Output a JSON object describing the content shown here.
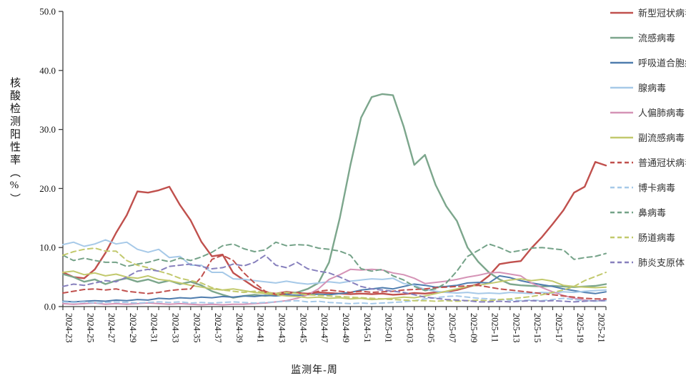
{
  "chart_data": {
    "type": "line",
    "title": "",
    "xlabel": "监测年-周",
    "ylabel": "核酸检测阳性率（%）",
    "ylim": [
      0,
      50
    ],
    "yticks": [
      0,
      10,
      20,
      30,
      40,
      50
    ],
    "ytick_decimals": 1,
    "grid": false,
    "legend_position": "right",
    "x_label_every": 2,
    "x": [
      "2024-23",
      "2024-24",
      "2024-25",
      "2024-26",
      "2024-27",
      "2024-28",
      "2024-29",
      "2024-30",
      "2024-31",
      "2024-32",
      "2024-33",
      "2024-34",
      "2024-35",
      "2024-36",
      "2024-37",
      "2024-38",
      "2024-39",
      "2024-40",
      "2024-41",
      "2024-42",
      "2024-43",
      "2024-44",
      "2024-45",
      "2024-46",
      "2024-47",
      "2024-48",
      "2024-49",
      "2024-50",
      "2024-51",
      "2024-52",
      "2025-01",
      "2025-02",
      "2025-03",
      "2025-04",
      "2025-05",
      "2025-06",
      "2025-07",
      "2025-08",
      "2025-09",
      "2025-10",
      "2025-11",
      "2025-12",
      "2025-13",
      "2025-14",
      "2025-15",
      "2025-16",
      "2025-17",
      "2025-18",
      "2025-19",
      "2025-20",
      "2025-21",
      "2025-22"
    ],
    "series": [
      {
        "name": "新型冠状病毒",
        "color": "#c0504d",
        "line_style": "solid",
        "width": 2.4,
        "values": [
          5.8,
          5.0,
          4.8,
          6.3,
          9.1,
          12.5,
          15.5,
          19.5,
          19.3,
          19.7,
          20.3,
          17.2,
          14.6,
          11.0,
          8.5,
          8.8,
          5.7,
          4.5,
          3.3,
          2.4,
          2.2,
          2.5,
          2.3,
          2.2,
          2.4,
          2.3,
          2.2,
          2.1,
          2.2,
          2.1,
          2.2,
          2.0,
          2.1,
          2.3,
          2.2,
          2.4,
          2.5,
          2.8,
          3.3,
          3.8,
          5.2,
          7.2,
          7.5,
          7.7,
          9.9,
          11.8,
          14.0,
          16.3,
          19.3,
          20.3,
          24.5,
          23.9
        ]
      },
      {
        "name": "流感病毒",
        "color": "#7ca68c",
        "line_style": "solid",
        "width": 2.4,
        "values": [
          5.5,
          5.0,
          4.2,
          4.6,
          3.8,
          4.4,
          4.8,
          4.2,
          4.6,
          4.0,
          4.4,
          3.8,
          4.2,
          3.6,
          2.6,
          2.0,
          1.5,
          1.8,
          2.0,
          1.8,
          2.0,
          2.2,
          2.4,
          3.0,
          4.0,
          7.5,
          15.0,
          24.0,
          32.0,
          35.5,
          36.0,
          35.8,
          30.5,
          24.0,
          25.7,
          20.6,
          17.0,
          14.5,
          10.0,
          7.6,
          5.8,
          4.6,
          3.8,
          3.6,
          3.5,
          3.4,
          3.5,
          3.4,
          3.3,
          3.4,
          3.5,
          3.8
        ]
      },
      {
        "name": "呼吸道合胞病毒",
        "color": "#4f7dae",
        "line_style": "solid",
        "width": 2.0,
        "values": [
          0.9,
          0.8,
          0.9,
          1.0,
          0.9,
          1.1,
          1.0,
          1.2,
          1.1,
          1.4,
          1.3,
          1.5,
          1.4,
          1.6,
          1.5,
          1.7,
          1.6,
          1.8,
          1.7,
          1.9,
          1.8,
          2.0,
          1.9,
          2.0,
          2.1,
          2.0,
          2.2,
          2.4,
          2.8,
          3.0,
          3.2,
          3.0,
          3.4,
          3.8,
          3.6,
          3.3,
          3.4,
          3.6,
          4.0,
          4.1,
          4.0,
          5.2,
          4.9,
          4.4,
          4.0,
          3.7,
          3.4,
          3.0,
          2.7,
          2.4,
          2.2,
          2.5
        ]
      },
      {
        "name": "腺病毒",
        "color": "#a6c9e8",
        "line_style": "solid",
        "width": 2.0,
        "values": [
          10.5,
          10.9,
          10.2,
          10.6,
          11.3,
          10.6,
          10.9,
          9.7,
          9.2,
          9.7,
          8.3,
          8.5,
          7.0,
          7.0,
          5.8,
          5.8,
          4.7,
          4.6,
          4.4,
          4.2,
          4.0,
          4.3,
          4.0,
          3.8,
          4.0,
          4.2,
          4.0,
          4.3,
          4.5,
          4.7,
          4.6,
          4.8,
          3.9,
          3.6,
          2.9,
          2.6,
          2.4,
          2.3,
          2.4,
          2.2,
          2.3,
          2.2,
          2.4,
          2.3,
          2.2,
          2.4,
          2.3,
          2.5,
          2.4,
          2.6,
          2.7,
          2.8
        ]
      },
      {
        "name": "人偏肺病毒",
        "color": "#d593b6",
        "line_style": "solid",
        "width": 2.0,
        "values": [
          0.5,
          0.4,
          0.5,
          0.6,
          0.4,
          0.5,
          0.4,
          0.5,
          0.6,
          0.5,
          0.4,
          0.5,
          0.4,
          0.3,
          0.4,
          0.3,
          0.4,
          0.4,
          0.5,
          0.6,
          0.8,
          1.0,
          1.4,
          2.0,
          3.0,
          4.6,
          5.4,
          6.3,
          6.2,
          6.3,
          6.2,
          5.7,
          5.4,
          4.8,
          3.9,
          4.1,
          4.3,
          4.6,
          5.0,
          5.3,
          5.7,
          5.8,
          5.5,
          5.2,
          4.0,
          3.2,
          2.5,
          1.9,
          1.4,
          1.1,
          0.9,
          1.2
        ]
      },
      {
        "name": "副流感病毒",
        "color": "#c2c96d",
        "line_style": "solid",
        "width": 2.0,
        "values": [
          5.8,
          6.0,
          5.4,
          5.7,
          5.2,
          5.5,
          5.0,
          4.8,
          5.2,
          4.6,
          4.4,
          4.0,
          3.6,
          3.3,
          3.0,
          2.8,
          3.0,
          2.7,
          2.4,
          2.2,
          2.0,
          1.8,
          1.7,
          1.5,
          1.6,
          1.4,
          1.5,
          1.3,
          1.4,
          1.2,
          1.3,
          1.4,
          1.6,
          1.5,
          1.8,
          2.2,
          2.6,
          3.0,
          3.4,
          3.6,
          3.9,
          4.2,
          4.5,
          4.7,
          4.4,
          4.6,
          4.3,
          3.6,
          3.4,
          3.3,
          3.2,
          3.3
        ]
      },
      {
        "name": "普通冠状病毒",
        "color": "#c0504d",
        "line_style": "dashed",
        "width": 2.0,
        "values": [
          2.3,
          2.6,
          2.9,
          3.0,
          2.8,
          3.0,
          2.6,
          2.4,
          2.2,
          2.4,
          2.7,
          2.9,
          3.0,
          5.0,
          8.0,
          8.7,
          7.8,
          5.7,
          4.0,
          2.6,
          2.0,
          2.2,
          2.4,
          2.1,
          2.6,
          2.8,
          2.6,
          2.4,
          2.6,
          2.4,
          2.5,
          2.6,
          2.8,
          2.9,
          3.0,
          3.2,
          3.3,
          3.4,
          3.5,
          3.6,
          3.3,
          3.0,
          2.8,
          2.6,
          2.4,
          2.2,
          2.0,
          1.8,
          1.6,
          1.4,
          1.3,
          1.3
        ]
      },
      {
        "name": "博卡病毒",
        "color": "#a6c9e8",
        "line_style": "dashed",
        "width": 2.0,
        "values": [
          0.8,
          0.7,
          0.8,
          0.6,
          0.7,
          0.8,
          0.7,
          0.6,
          0.7,
          0.8,
          0.7,
          0.8,
          0.6,
          0.7,
          0.6,
          0.7,
          0.8,
          0.7,
          0.6,
          0.7,
          0.8,
          0.9,
          1.0,
          0.8,
          0.9,
          0.7,
          0.6,
          0.5,
          0.6,
          0.5,
          0.6,
          0.7,
          0.8,
          1.0,
          1.3,
          1.5,
          1.7,
          1.8,
          1.6,
          1.4,
          1.3,
          1.2,
          1.1,
          1.0,
          1.1,
          1.0,
          1.2,
          1.4,
          1.2,
          1.0,
          0.9,
          1.0
        ]
      },
      {
        "name": "鼻病毒",
        "color": "#74a288",
        "line_style": "dashed",
        "width": 2.0,
        "values": [
          8.7,
          7.8,
          8.2,
          7.8,
          7.5,
          7.5,
          6.8,
          7.2,
          7.5,
          8.0,
          7.6,
          8.2,
          7.8,
          8.4,
          9.2,
          10.3,
          10.6,
          9.8,
          9.3,
          9.6,
          10.9,
          10.3,
          10.5,
          10.4,
          9.9,
          9.7,
          9.4,
          8.7,
          6.4,
          6.0,
          6.3,
          5.2,
          4.5,
          3.4,
          2.7,
          3.0,
          4.0,
          6.0,
          8.5,
          9.5,
          10.6,
          10.0,
          9.2,
          9.5,
          9.9,
          10.0,
          9.8,
          9.6,
          8.0,
          8.3,
          8.5,
          9.0
        ]
      },
      {
        "name": "肠道病毒",
        "color": "#c2c96d",
        "line_style": "dashed",
        "width": 2.0,
        "values": [
          8.7,
          9.3,
          9.7,
          9.9,
          9.4,
          9.4,
          7.8,
          7.0,
          6.6,
          6.0,
          5.5,
          4.8,
          4.4,
          4.0,
          3.2,
          2.8,
          2.6,
          2.4,
          2.6,
          2.4,
          2.2,
          2.4,
          2.2,
          2.0,
          1.9,
          1.8,
          1.7,
          1.6,
          1.5,
          1.4,
          1.3,
          1.2,
          1.1,
          1.0,
          1.0,
          0.9,
          1.0,
          0.9,
          1.0,
          1.1,
          1.0,
          1.2,
          1.3,
          1.5,
          1.7,
          2.0,
          2.4,
          2.8,
          3.4,
          4.4,
          5.1,
          5.8
        ]
      },
      {
        "name": "肺炎支原体",
        "color": "#8780bd",
        "line_style": "dashed",
        "width": 2.0,
        "values": [
          3.4,
          3.8,
          3.6,
          4.0,
          4.4,
          4.2,
          5.0,
          6.0,
          6.3,
          6.0,
          6.8,
          7.0,
          7.2,
          6.8,
          6.4,
          6.6,
          7.2,
          6.9,
          7.5,
          8.7,
          7.0,
          6.6,
          7.5,
          6.4,
          6.0,
          5.7,
          5.0,
          4.2,
          3.4,
          3.0,
          2.8,
          2.6,
          2.4,
          2.0,
          1.6,
          1.4,
          1.2,
          1.1,
          1.0,
          0.8,
          0.8,
          0.9,
          0.8,
          0.9,
          1.0,
          0.9,
          1.0,
          0.9,
          0.8,
          0.9,
          1.0,
          1.0
        ]
      }
    ]
  }
}
